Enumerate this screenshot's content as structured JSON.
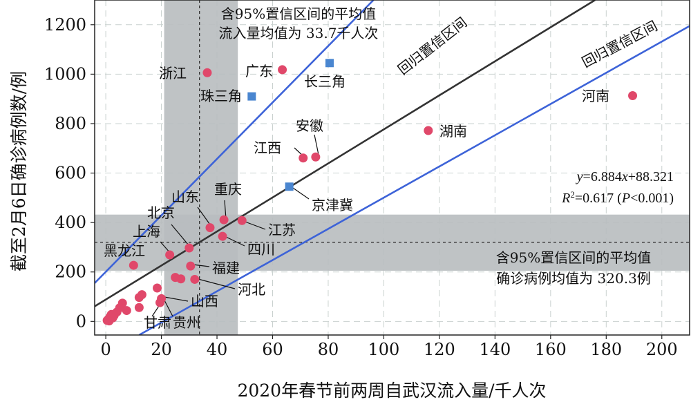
{
  "chart_data": {
    "type": "scatter",
    "xlabel": "2020年春节前两周自武汉流入量/千人次",
    "ylabel": "截至2月6日确诊病例数/例",
    "xlim": [
      -4,
      210
    ],
    "ylim": [
      -55,
      1300
    ],
    "xticks": [
      0,
      20,
      40,
      60,
      80,
      100,
      120,
      140,
      160,
      180,
      200
    ],
    "yticks": [
      0,
      200,
      400,
      600,
      800,
      1000,
      1200
    ],
    "grid": "dashed",
    "colors": {
      "province": "#e0486a",
      "region": "#4a86d0",
      "fit": "#333333",
      "band": "#3d63d8",
      "ci": "#b8bcbf"
    },
    "mean_x": {
      "value": 33.7,
      "ci": [
        21,
        47.5
      ]
    },
    "mean_y": {
      "value": 320.3,
      "ci": [
        205,
        432
      ]
    },
    "fit": {
      "slope": 6.884,
      "intercept": 88.321
    },
    "fit_label": {
      "y": "y",
      "eq_rest": "=6.884",
      "x": "x",
      "eq_tail": "+88.321"
    },
    "r2_label": {
      "r": "R",
      "sup": "2",
      "mid": "=0.617 (",
      "p": "P",
      "tail": "<0.001)"
    },
    "pred_upper": {
      "x": [
        -4,
        96.3
      ],
      "y": [
        155,
        1300
      ]
    },
    "pred_lower": {
      "x": [
        12,
        210
      ],
      "y": [
        -55,
        1195
      ]
    },
    "band_labels": [
      "回归置信区间",
      "回归置信区间"
    ],
    "annotations": {
      "x_ci": [
        "含95%置信区间的平均值",
        "流入量均值为 33.7千人次"
      ],
      "y_ci": [
        "含95%置信区间的平均值",
        "确诊病例均值为 320.3例"
      ]
    },
    "regions": [
      {
        "name": "长三角",
        "x": 80.5,
        "y": 1045
      },
      {
        "name": "珠三角",
        "x": 52.5,
        "y": 910
      },
      {
        "name": "京津冀",
        "x": 66,
        "y": 545
      }
    ],
    "provinces": [
      {
        "name": "河南",
        "x": 189.5,
        "y": 913
      },
      {
        "name": "湖南",
        "x": 116,
        "y": 772
      },
      {
        "name": "浙江",
        "x": 36.5,
        "y": 1006
      },
      {
        "name": "广东",
        "x": 63.5,
        "y": 1018
      },
      {
        "name": "安徽",
        "x": 75.5,
        "y": 665
      },
      {
        "name": "江西",
        "x": 71,
        "y": 661
      },
      {
        "name": "重庆",
        "x": 42.5,
        "y": 411
      },
      {
        "name": "江苏",
        "x": 49,
        "y": 408
      },
      {
        "name": "山东",
        "x": 37.5,
        "y": 379
      },
      {
        "name": "四川",
        "x": 42,
        "y": 344
      },
      {
        "name": "北京",
        "x": 30,
        "y": 297
      },
      {
        "name": "上海",
        "x": 23,
        "y": 269
      },
      {
        "name": "黑龙江",
        "x": 10,
        "y": 227
      },
      {
        "name": "福建",
        "x": 30.5,
        "y": 224
      },
      {
        "name": "河北",
        "x": 32,
        "y": 170
      },
      {
        "name": "山西",
        "x": 20,
        "y": 92
      },
      {
        "name": "甘肃",
        "x": 12,
        "y": 56
      },
      {
        "name": "贵州",
        "x": 19.5,
        "y": 76
      },
      {
        "name": "",
        "x": 27,
        "y": 172
      },
      {
        "name": "",
        "x": 25,
        "y": 178
      },
      {
        "name": "",
        "x": 18.5,
        "y": 135
      },
      {
        "name": "",
        "x": 13,
        "y": 108
      },
      {
        "name": "",
        "x": 12,
        "y": 97
      },
      {
        "name": "",
        "x": 6,
        "y": 74
      },
      {
        "name": "",
        "x": 5,
        "y": 55
      },
      {
        "name": "",
        "x": 7.5,
        "y": 44
      },
      {
        "name": "",
        "x": 4,
        "y": 38
      },
      {
        "name": "",
        "x": 2,
        "y": 28
      },
      {
        "name": "",
        "x": 3,
        "y": 24
      },
      {
        "name": "",
        "x": 1.5,
        "y": 18
      },
      {
        "name": "",
        "x": 1,
        "y": 10
      },
      {
        "name": "",
        "x": 2.5,
        "y": 14
      },
      {
        "name": "",
        "x": 0.5,
        "y": 4
      },
      {
        "name": "",
        "x": 1.2,
        "y": 2
      }
    ]
  }
}
